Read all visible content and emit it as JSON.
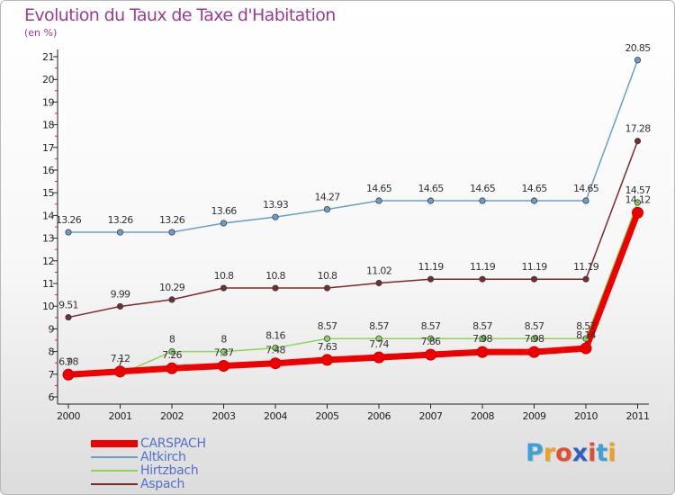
{
  "header": {
    "title": "Evolution du Taux de Taxe d'Habitation",
    "unit": "(en %)"
  },
  "logo": {
    "letters": [
      "P",
      "r",
      "o",
      "x",
      "i",
      "t",
      "i"
    ],
    "colors": [
      "#3fa0d8",
      "#f0a020",
      "#e05030",
      "#3060c0",
      "#e05030",
      "#3fa0d8",
      "#f0a020"
    ]
  },
  "chart_data": {
    "type": "line",
    "title": "Evolution du Taux de Taxe d'Habitation",
    "ylabel": "(en %)",
    "xlabel": "",
    "x": [
      "2000",
      "2001",
      "2002",
      "2003",
      "2004",
      "2005",
      "2006",
      "2007",
      "2008",
      "2009",
      "2010",
      "2011"
    ],
    "ylim": [
      6,
      21
    ],
    "yticks": [
      6,
      7,
      8,
      9,
      10,
      11,
      12,
      13,
      14,
      15,
      16,
      17,
      18,
      19,
      20,
      21
    ],
    "grid": false,
    "legend": "bottom-left",
    "series": [
      {
        "name": "CARSPACH",
        "color": "#ee0000",
        "labels": [
          "6.98",
          "7.12",
          "7.26",
          "7.37",
          "7.48",
          "7.63",
          "7.74",
          "7.86",
          "7.98",
          "7.98",
          "8.14",
          "14.12"
        ],
        "values": [
          6.98,
          7.12,
          7.26,
          7.37,
          7.48,
          7.63,
          7.74,
          7.86,
          7.98,
          7.98,
          8.14,
          14.12
        ]
      },
      {
        "name": "Altkirch",
        "color": "#6d9ec9",
        "labels": [
          "13.26",
          "13.26",
          "13.26",
          "13.66",
          "13.93",
          "14.27",
          "14.65",
          "14.65",
          "14.65",
          "14.65",
          "14.65",
          "20.85"
        ],
        "values": [
          13.26,
          13.26,
          13.26,
          13.66,
          13.93,
          14.27,
          14.65,
          14.65,
          14.65,
          14.65,
          14.65,
          20.85
        ]
      },
      {
        "name": "Hirtzbach",
        "color": "#8fd35a",
        "labels": [
          "7",
          "7",
          "8",
          "8",
          "8.16",
          "8.57",
          "8.57",
          "8.57",
          "8.57",
          "8.57",
          "8.57",
          "14.57"
        ],
        "values": [
          7,
          7,
          8,
          8,
          8.16,
          8.57,
          8.57,
          8.57,
          8.57,
          8.57,
          8.57,
          14.57
        ]
      },
      {
        "name": "Aspach",
        "color": "#7a2a2a",
        "labels": [
          "9.51",
          "9.99",
          "10.29",
          "10.8",
          "10.8",
          "10.8",
          "11.02",
          "11.19",
          "11.19",
          "11.19",
          "11.19",
          "17.28"
        ],
        "values": [
          9.51,
          9.99,
          10.29,
          10.8,
          10.8,
          10.8,
          11.02,
          11.19,
          11.19,
          11.19,
          11.19,
          17.28
        ]
      }
    ]
  }
}
